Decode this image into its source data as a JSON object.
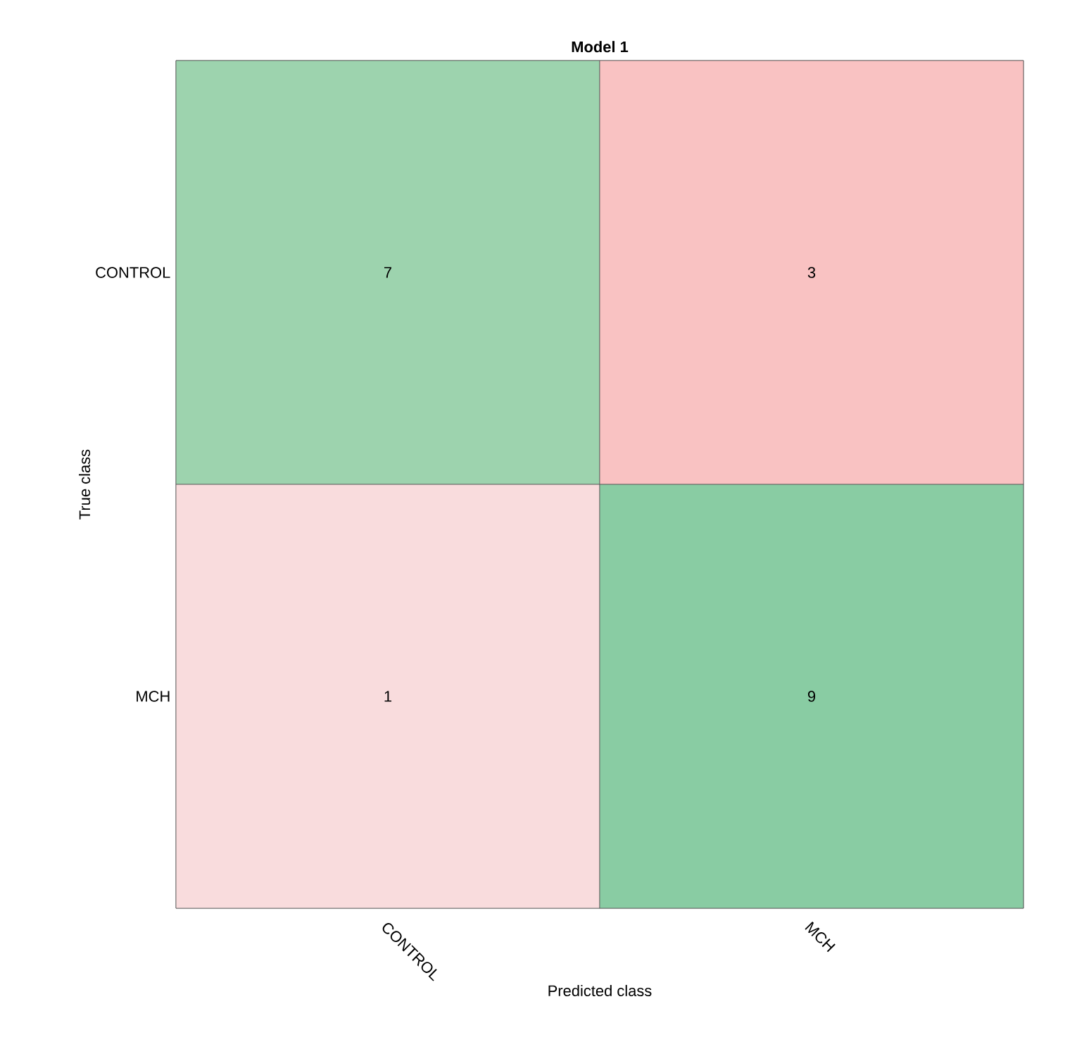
{
  "chart_data": {
    "type": "heatmap",
    "title": "Model 1",
    "xlabel": "Predicted class",
    "ylabel": "True class",
    "categories": [
      "CONTROL",
      "MCH"
    ],
    "y_categories": [
      "CONTROL",
      "MCH"
    ],
    "cells": [
      [
        7,
        3
      ],
      [
        1,
        9
      ]
    ],
    "colors": [
      [
        "#9dd3ae",
        "#f9c2c2"
      ],
      [
        "#f9dcdd",
        "#89cca3"
      ]
    ],
    "data_labels": true
  }
}
